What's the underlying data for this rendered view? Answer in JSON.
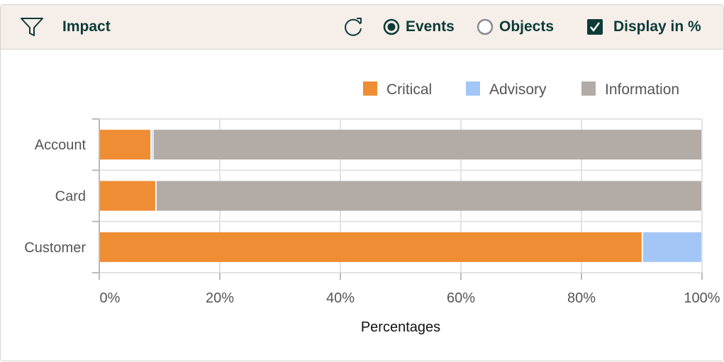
{
  "header": {
    "title": "Impact",
    "filter_icon": "filter-funnel-icon",
    "refresh_icon": "refresh-icon",
    "radio_events": "Events",
    "radio_objects": "Objects",
    "selected_mode": "Events",
    "checkbox_label": "Display in %",
    "checkbox_checked": true
  },
  "chart_data": {
    "type": "bar",
    "orientation": "horizontal",
    "stacked": true,
    "categories": [
      "Account",
      "Card",
      "Customer"
    ],
    "series": [
      {
        "name": "Critical",
        "color": "#ef8d34",
        "values": [
          8.6,
          9.4,
          90.1
        ]
      },
      {
        "name": "Advisory",
        "color": "#a3c6f7",
        "values": [
          0.3,
          0,
          9.9
        ]
      },
      {
        "name": "Information",
        "color": "#b3aba6",
        "values": [
          91.1,
          90.6,
          0
        ]
      }
    ],
    "xlabel": "Percentages",
    "ylabel": "",
    "xlim": [
      0,
      100
    ],
    "xticks": [
      "0%",
      "20%",
      "40%",
      "60%",
      "80%",
      "100%"
    ],
    "legend_position": "top-right",
    "grid": true
  }
}
